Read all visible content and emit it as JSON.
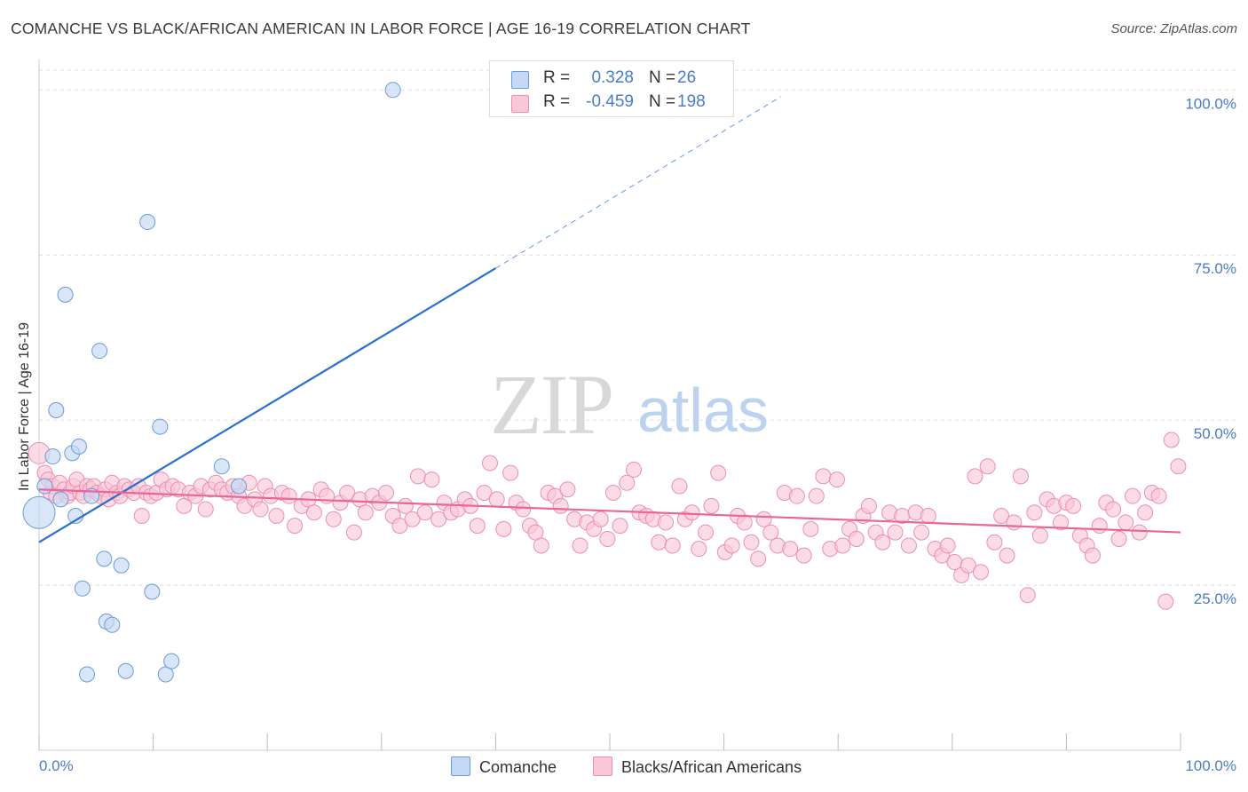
{
  "header": {
    "title": "COMANCHE VS BLACK/AFRICAN AMERICAN IN LABOR FORCE | AGE 16-19 CORRELATION CHART",
    "source": "Source: ZipAtlas.com"
  },
  "watermark": {
    "zip": "ZIP",
    "atlas": "atlas"
  },
  "colors": {
    "comanche_fill": "#c5d8f5",
    "comanche_stroke": "#6b9bd8",
    "comanche_line": "#2a6fcf",
    "black_fill": "#f9c8d8",
    "black_stroke": "#ec8fae",
    "black_line": "#e8669a",
    "tick_text": "#4a7cc9",
    "grid": "#dddddd"
  },
  "legend": {
    "rows": [
      {
        "r_label": "R =",
        "r_value": "0.328",
        "n_label": "N =",
        "n_value": "26"
      },
      {
        "r_label": "R =",
        "r_value": "-0.459",
        "n_label": "N =",
        "n_value": "198"
      }
    ]
  },
  "bottom_legend": {
    "items": [
      "Comanche",
      "Blacks/African Americans"
    ]
  },
  "chart_data": {
    "type": "scatter",
    "title": "COMANCHE VS BLACK/AFRICAN AMERICAN IN LABOR FORCE | AGE 16-19 CORRELATION CHART",
    "xlabel": "",
    "ylabel": "In Labor Force | Age 16-19",
    "xlim": [
      0,
      100
    ],
    "ylim": [
      0,
      103
    ],
    "x_tick_labels": [
      "0.0%",
      "100.0%"
    ],
    "y_tick_labels": [
      "25.0%",
      "50.0%",
      "75.0%",
      "100.0%"
    ],
    "y_ticks": [
      25,
      50,
      75,
      100
    ],
    "grid": true,
    "legend_position": "top-center",
    "series": [
      {
        "name": "Comanche",
        "R": 0.328,
        "N": 26,
        "trend": {
          "x0": 0,
          "y0": 31.5,
          "x1": 40,
          "y1": 73,
          "dashed_to": [
            65,
            99
          ]
        },
        "points": [
          [
            0,
            36,
            3
          ],
          [
            0.5,
            40,
            1
          ],
          [
            1.2,
            44.5,
            1
          ],
          [
            1.5,
            51.5,
            1
          ],
          [
            1.9,
            38,
            1
          ],
          [
            2.3,
            69,
            1
          ],
          [
            2.9,
            45,
            1
          ],
          [
            3.2,
            35.5,
            1
          ],
          [
            3.5,
            46,
            1
          ],
          [
            3.8,
            24.5,
            1
          ],
          [
            4.2,
            11.5,
            1
          ],
          [
            4.6,
            38.5,
            1
          ],
          [
            5.3,
            60.5,
            1
          ],
          [
            5.7,
            29,
            1
          ],
          [
            5.9,
            19.5,
            1
          ],
          [
            6.4,
            19,
            1
          ],
          [
            7.2,
            28,
            1
          ],
          [
            7.6,
            12,
            1
          ],
          [
            9.5,
            80,
            1
          ],
          [
            9.9,
            24,
            1
          ],
          [
            10.6,
            49,
            1
          ],
          [
            11.1,
            11.5,
            1
          ],
          [
            11.6,
            13.5,
            1
          ],
          [
            16,
            43,
            1
          ],
          [
            17.5,
            40,
            1
          ],
          [
            31,
            100,
            1
          ]
        ]
      },
      {
        "name": "Blacks/African Americans",
        "R": -0.459,
        "N": 198,
        "trend": {
          "x0": 0,
          "y0": 39.5,
          "x1": 100,
          "y1": 33
        },
        "points": [
          [
            0,
            45,
            2
          ],
          [
            0.5,
            42,
            1
          ],
          [
            0.8,
            41,
            1
          ],
          [
            1,
            39,
            1
          ],
          [
            1.2,
            40,
            1
          ],
          [
            1.5,
            38.5,
            1
          ],
          [
            1.8,
            40.5,
            1
          ],
          [
            2.2,
            39.5,
            1
          ],
          [
            2.5,
            38.5,
            1
          ],
          [
            2.7,
            39,
            1
          ],
          [
            3,
            40,
            1
          ],
          [
            3.3,
            41,
            1
          ],
          [
            3.6,
            39,
            1
          ],
          [
            3.9,
            38.5,
            1
          ],
          [
            4.2,
            40,
            1
          ],
          [
            4.5,
            39.5,
            1
          ],
          [
            4.8,
            40,
            1
          ],
          [
            5.1,
            39,
            1
          ],
          [
            5.4,
            38.5,
            1
          ],
          [
            5.8,
            39.5,
            1
          ],
          [
            6.1,
            38,
            1
          ],
          [
            6.4,
            40.5,
            1
          ],
          [
            6.8,
            39,
            1
          ],
          [
            7.1,
            38.5,
            1
          ],
          [
            7.5,
            40,
            1
          ],
          [
            7.9,
            39.5,
            1
          ],
          [
            8.3,
            39,
            1
          ],
          [
            8.7,
            40,
            1
          ],
          [
            9,
            35.5,
            1
          ],
          [
            9.4,
            39,
            1
          ],
          [
            9.8,
            38.5,
            1
          ],
          [
            10.3,
            39,
            1
          ],
          [
            10.7,
            41,
            1
          ],
          [
            11.2,
            39.5,
            1
          ],
          [
            11.7,
            40,
            1
          ],
          [
            12.2,
            39.5,
            1
          ],
          [
            12.7,
            37,
            1
          ],
          [
            13.2,
            39,
            1
          ],
          [
            13.7,
            38.5,
            1
          ],
          [
            14.2,
            40,
            1
          ],
          [
            14.6,
            36.5,
            1
          ],
          [
            15,
            39.5,
            1
          ],
          [
            15.5,
            40.5,
            1
          ],
          [
            16,
            39.5,
            1
          ],
          [
            16.5,
            39,
            1
          ],
          [
            17,
            40,
            1
          ],
          [
            17.5,
            38.5,
            1
          ],
          [
            18,
            37,
            1
          ],
          [
            18.4,
            40.5,
            1
          ],
          [
            18.9,
            38,
            1
          ],
          [
            19.4,
            36.5,
            1
          ],
          [
            19.8,
            40,
            1
          ],
          [
            20.3,
            38.5,
            1
          ],
          [
            20.8,
            35.5,
            1
          ],
          [
            21.3,
            39,
            1
          ],
          [
            21.9,
            38.5,
            1
          ],
          [
            22.4,
            34,
            1
          ],
          [
            23,
            37,
            1
          ],
          [
            23.6,
            38,
            1
          ],
          [
            24.1,
            36,
            1
          ],
          [
            24.7,
            39.5,
            1
          ],
          [
            25.2,
            38.5,
            1
          ],
          [
            25.8,
            35,
            1
          ],
          [
            26.4,
            37.5,
            1
          ],
          [
            27,
            39,
            1
          ],
          [
            27.6,
            33,
            1
          ],
          [
            28.1,
            38,
            1
          ],
          [
            28.6,
            36,
            1
          ],
          [
            29.2,
            38.5,
            1
          ],
          [
            29.8,
            37.5,
            1
          ],
          [
            30.4,
            39,
            1
          ],
          [
            31,
            35.5,
            1
          ],
          [
            31.6,
            34,
            1
          ],
          [
            32.1,
            37,
            1
          ],
          [
            32.7,
            35,
            1
          ],
          [
            33.2,
            41.5,
            1
          ],
          [
            33.8,
            36,
            1
          ],
          [
            34.4,
            41,
            1
          ],
          [
            35,
            35,
            1
          ],
          [
            35.5,
            37.5,
            1
          ],
          [
            36.1,
            36,
            1
          ],
          [
            36.7,
            36.5,
            1
          ],
          [
            37.3,
            38,
            1
          ],
          [
            37.8,
            37,
            1
          ],
          [
            38.4,
            34,
            1
          ],
          [
            39,
            39,
            1
          ],
          [
            39.5,
            43.5,
            1
          ],
          [
            40.1,
            38,
            1
          ],
          [
            40.7,
            33.5,
            1
          ],
          [
            41.3,
            42,
            1
          ],
          [
            41.8,
            37.5,
            1
          ],
          [
            42.4,
            36.5,
            1
          ],
          [
            43,
            34,
            1
          ],
          [
            43.5,
            33,
            1
          ],
          [
            44,
            31,
            1
          ],
          [
            44.6,
            39,
            1
          ],
          [
            45.2,
            38.5,
            1
          ],
          [
            45.7,
            37,
            1
          ],
          [
            46.3,
            39.5,
            1
          ],
          [
            46.9,
            35,
            1
          ],
          [
            47.4,
            31,
            1
          ],
          [
            48,
            34.5,
            1
          ],
          [
            48.6,
            33.5,
            1
          ],
          [
            49.2,
            35,
            1
          ],
          [
            49.8,
            32,
            1
          ],
          [
            50.3,
            39,
            1
          ],
          [
            50.9,
            34,
            1
          ],
          [
            51.5,
            40.5,
            1
          ],
          [
            52.1,
            42.5,
            1
          ],
          [
            52.6,
            36,
            1
          ],
          [
            53.2,
            35.5,
            1
          ],
          [
            53.8,
            35,
            1
          ],
          [
            54.3,
            31.5,
            1
          ],
          [
            54.9,
            34.5,
            1
          ],
          [
            55.5,
            31,
            1
          ],
          [
            56.1,
            40,
            1
          ],
          [
            56.6,
            35,
            1
          ],
          [
            57.2,
            36,
            1
          ],
          [
            57.8,
            30.5,
            1
          ],
          [
            58.4,
            33,
            1
          ],
          [
            58.9,
            37,
            1
          ],
          [
            59.5,
            42,
            1
          ],
          [
            60.1,
            30,
            1
          ],
          [
            60.7,
            31,
            1
          ],
          [
            61.2,
            35.5,
            1
          ],
          [
            61.8,
            34.5,
            1
          ],
          [
            62.4,
            31.5,
            1
          ],
          [
            63,
            29,
            1
          ],
          [
            63.5,
            35,
            1
          ],
          [
            64.1,
            33,
            1
          ],
          [
            64.7,
            31,
            1
          ],
          [
            65.3,
            39,
            1
          ],
          [
            65.8,
            30.5,
            1
          ],
          [
            66.4,
            38.5,
            1
          ],
          [
            67,
            29.5,
            1
          ],
          [
            67.6,
            33.5,
            1
          ],
          [
            68.1,
            38.5,
            1
          ],
          [
            68.7,
            41.5,
            1
          ],
          [
            69.3,
            30.5,
            1
          ],
          [
            69.9,
            41,
            1
          ],
          [
            70.4,
            31,
            1
          ],
          [
            71,
            33.5,
            1
          ],
          [
            71.6,
            32,
            1
          ],
          [
            72.2,
            35.5,
            1
          ],
          [
            72.7,
            37,
            1
          ],
          [
            73.3,
            33,
            1
          ],
          [
            73.9,
            31.5,
            1
          ],
          [
            74.5,
            36,
            1
          ],
          [
            75,
            33,
            1
          ],
          [
            75.6,
            35.5,
            1
          ],
          [
            76.2,
            31,
            1
          ],
          [
            76.8,
            36,
            1
          ],
          [
            77.3,
            33,
            1
          ],
          [
            77.9,
            35.5,
            1
          ],
          [
            78.5,
            30.5,
            1
          ],
          [
            79.1,
            29.5,
            1
          ],
          [
            79.6,
            31,
            1
          ],
          [
            80.2,
            28.5,
            1
          ],
          [
            80.8,
            26.5,
            1
          ],
          [
            81.4,
            28,
            1
          ],
          [
            82,
            41.5,
            1
          ],
          [
            82.5,
            27,
            1
          ],
          [
            83.1,
            43,
            1
          ],
          [
            83.7,
            31.5,
            1
          ],
          [
            84.3,
            35.5,
            1
          ],
          [
            84.8,
            29.5,
            1
          ],
          [
            85.4,
            34.5,
            1
          ],
          [
            86,
            41.5,
            1
          ],
          [
            86.6,
            23.5,
            1
          ],
          [
            87.2,
            36,
            1
          ],
          [
            87.7,
            32.5,
            1
          ],
          [
            88.3,
            38,
            1
          ],
          [
            88.9,
            37,
            1
          ],
          [
            89.5,
            34.5,
            1
          ],
          [
            90,
            37.5,
            1
          ],
          [
            90.6,
            37,
            1
          ],
          [
            91.2,
            32.5,
            1
          ],
          [
            91.8,
            31,
            1
          ],
          [
            92.3,
            29.5,
            1
          ],
          [
            92.9,
            34,
            1
          ],
          [
            93.5,
            37.5,
            1
          ],
          [
            94.1,
            36.5,
            1
          ],
          [
            94.6,
            32,
            1
          ],
          [
            95.2,
            34.5,
            1
          ],
          [
            95.8,
            38.5,
            1
          ],
          [
            96.4,
            33,
            1
          ],
          [
            96.9,
            36,
            1
          ],
          [
            97.5,
            39,
            1
          ],
          [
            98.1,
            38.5,
            1
          ],
          [
            98.7,
            22.5,
            1
          ],
          [
            99.2,
            47,
            1
          ],
          [
            99.8,
            43,
            1
          ]
        ]
      }
    ]
  }
}
